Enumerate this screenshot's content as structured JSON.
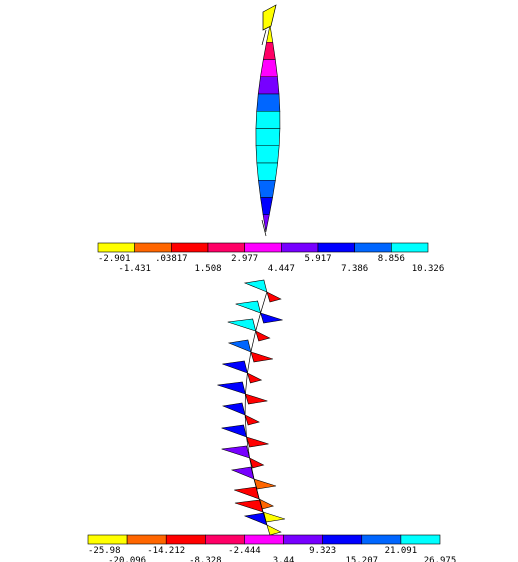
{
  "top_diagram": {
    "legend": {
      "colors": [
        "#ffff00",
        "#ff6600",
        "#ff0000",
        "#ff0066",
        "#ff00ff",
        "#7700ff",
        "#0000ff",
        "#0066ff",
        "#00ffff"
      ],
      "ticks": [
        "-2.901",
        "-1.431",
        ".03817",
        "1.508",
        "2.977",
        "4.447",
        "5.917",
        "7.386",
        "8.856",
        "10.326"
      ]
    },
    "segment_colors": [
      "#ffff00",
      "#ff0066",
      "#ff00ff",
      "#7700ff",
      "#0066ff",
      "#00ffff",
      "#00ffff",
      "#00ffff",
      "#00ffff",
      "#0066ff",
      "#0000ff",
      "#7700ff"
    ]
  },
  "bottom_diagram": {
    "legend": {
      "colors": [
        "#ffff00",
        "#ff6600",
        "#ff0000",
        "#ff0066",
        "#ff00ff",
        "#7700ff",
        "#0000ff",
        "#0066ff",
        "#00ffff"
      ],
      "ticks": [
        "-25.98",
        "-20.096",
        "-14.212",
        "-8.328",
        "-2.444",
        "3.44",
        "9.323",
        "15.207",
        "21.091",
        "26.975"
      ]
    },
    "moment_pairs": [
      {
        "left": "#00ffff",
        "right": "#ff0000"
      },
      {
        "left": "#00ffff",
        "right": "#0000ff"
      },
      {
        "left": "#00ffff",
        "right": "#ff0000"
      },
      {
        "left": "#0066ff",
        "right": "#ff0000"
      },
      {
        "left": "#0000ff",
        "right": "#ff0000"
      },
      {
        "left": "#0000ff",
        "right": "#ff0000"
      },
      {
        "left": "#0000ff",
        "right": "#ff0000"
      },
      {
        "left": "#0000ff",
        "right": "#ff0000"
      },
      {
        "left": "#7700ff",
        "right": "#ff0000"
      },
      {
        "left": "#7700ff",
        "right": "#ff6600"
      },
      {
        "left": "#ff0000",
        "right": "#ff6600"
      },
      {
        "left": "#ff0000",
        "right": "#ffff00"
      },
      {
        "left": "#0000ff",
        "right": "#ffff00"
      }
    ]
  }
}
